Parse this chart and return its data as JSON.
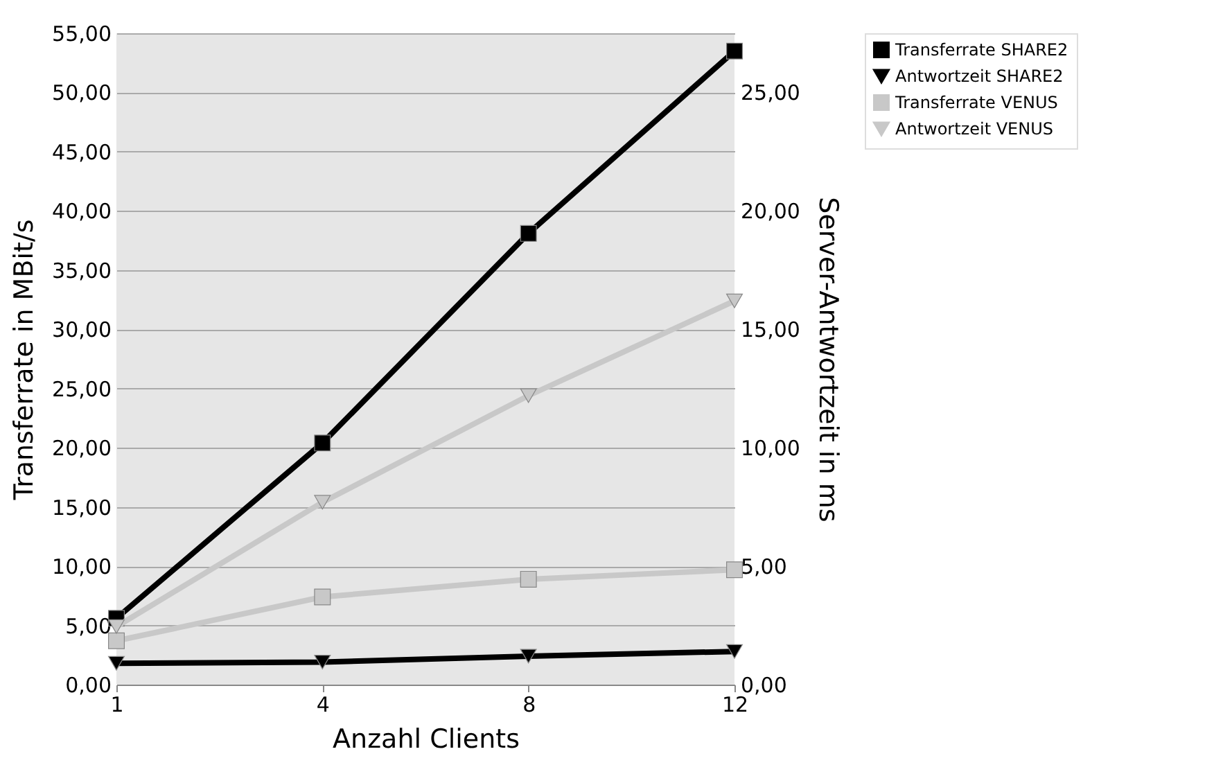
{
  "chart_data": {
    "type": "line",
    "xlabel": "Anzahl Clients",
    "ylabel": "Transferrate in MBit/s",
    "y2label": "Server-Antwortzeit in ms",
    "categories": [
      "1",
      "4",
      "8",
      "12"
    ],
    "series": [
      {
        "name": "Transferrate SHARE2",
        "color": "#000000",
        "marker": "square",
        "values": [
          5.6,
          20.4,
          38.1,
          53.5
        ]
      },
      {
        "name": "Antwortzeit SHARE2",
        "color": "#000000",
        "marker": "triangle",
        "axis": "y2",
        "values": [
          0.9,
          0.95,
          1.2,
          1.4
        ]
      },
      {
        "name": "Transferrate VENUS",
        "color": "#c8c8c8",
        "marker": "square",
        "values": [
          3.7,
          7.4,
          8.9,
          9.7
        ]
      },
      {
        "name": "Antwortzeit VENUS",
        "color": "#c8c8c8",
        "marker": "triangle",
        "axis": "y2",
        "values": [
          2.45,
          7.7,
          12.2,
          16.2
        ]
      }
    ],
    "ylim": [
      0,
      55
    ],
    "yticks": [
      {
        "value": 0,
        "label": "0,00"
      },
      {
        "value": 5,
        "label": "5,00"
      },
      {
        "value": 10,
        "label": "10,00"
      },
      {
        "value": 15,
        "label": "15,00"
      },
      {
        "value": 20,
        "label": "20,00"
      },
      {
        "value": 25,
        "label": "25,00"
      },
      {
        "value": 30,
        "label": "30,00"
      },
      {
        "value": 35,
        "label": "35,00"
      },
      {
        "value": 40,
        "label": "40,00"
      },
      {
        "value": 45,
        "label": "45,00"
      },
      {
        "value": 50,
        "label": "50,00"
      },
      {
        "value": 55,
        "label": "55,00"
      }
    ],
    "y2lim": [
      0,
      27.5
    ],
    "y2ticks": [
      {
        "value": 0,
        "label": "0,00"
      },
      {
        "value": 5,
        "label": "5,00"
      },
      {
        "value": 10,
        "label": "10,00"
      },
      {
        "value": 15,
        "label": "15,00"
      },
      {
        "value": 20,
        "label": "20,00"
      },
      {
        "value": 25,
        "label": "25,00"
      }
    ],
    "grid": "y",
    "legend": "right",
    "line_style": "solid"
  }
}
